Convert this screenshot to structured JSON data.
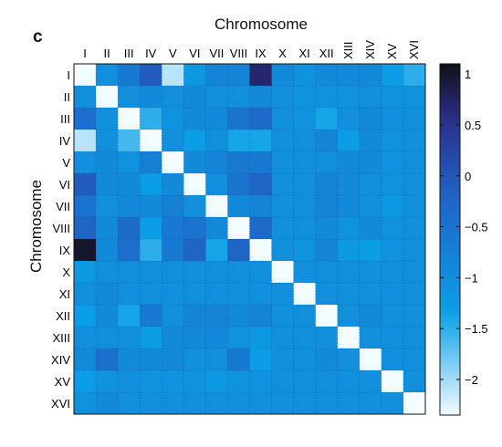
{
  "panel_letter": "c",
  "chart_data": {
    "type": "heatmap",
    "xlabel": "Chromosome",
    "ylabel": "Chromosome",
    "categories": [
      "I",
      "II",
      "III",
      "IV",
      "V",
      "VI",
      "VII",
      "VIII",
      "IX",
      "X",
      "XI",
      "XII",
      "XIII",
      "XIV",
      "XV",
      "XVI"
    ],
    "colorbar": {
      "min": -2.35,
      "max": 1.1,
      "ticks": [
        1,
        0.5,
        0,
        -0.5,
        -1,
        -1.5,
        -2
      ],
      "tick_labels": [
        "1",
        "0.5",
        "0",
        "−0.5",
        "−1",
        "−1.5",
        "−2"
      ]
    },
    "grid": "dotted",
    "colors": {
      "low": "#f2fbff",
      "mid": "#0aa0e6",
      "mid_dark": "#1f67c8",
      "high_blue": "#2b2f8a",
      "max": "#101018"
    },
    "values": [
      [
        -2.35,
        -1.0,
        -0.6,
        -0.1,
        -2.1,
        -1.2,
        -0.8,
        -0.8,
        0.7,
        -0.9,
        -1.1,
        -0.9,
        -0.9,
        -0.9,
        -1.3,
        -1.5
      ],
      [
        -1.0,
        -2.35,
        -1.0,
        -0.9,
        -1.0,
        -0.9,
        -1.0,
        -1.0,
        -0.9,
        -1.0,
        -1.1,
        -1.1,
        -1.1,
        -1.0,
        -1.1,
        -1.1
      ],
      [
        -0.4,
        -1.0,
        -2.35,
        -1.5,
        -1.1,
        -0.9,
        -0.9,
        -0.5,
        -0.3,
        -1.0,
        -1.1,
        -1.4,
        -1.0,
        -0.9,
        -1.0,
        -1.0
      ],
      [
        -2.1,
        -1.0,
        -1.6,
        -2.35,
        -1.0,
        -1.3,
        -1.0,
        -1.4,
        -1.4,
        -1.0,
        -1.0,
        -0.8,
        -1.3,
        -0.9,
        -1.1,
        -1.0
      ],
      [
        -1.0,
        -0.9,
        -1.1,
        -0.7,
        -2.35,
        -0.9,
        -0.8,
        -0.6,
        -0.6,
        -1.0,
        -1.0,
        -1.0,
        -0.9,
        -0.9,
        -1.1,
        -1.0
      ],
      [
        -0.1,
        -0.9,
        -0.9,
        -1.3,
        -0.9,
        -2.35,
        -1.0,
        -0.5,
        -0.2,
        -1.0,
        -1.0,
        -0.8,
        -0.9,
        -1.0,
        -1.1,
        -1.0
      ],
      [
        -0.5,
        -1.0,
        -0.9,
        -0.9,
        -0.7,
        -1.0,
        -2.35,
        -0.9,
        -0.8,
        -1.0,
        -1.0,
        -0.8,
        -0.9,
        -1.0,
        -1.2,
        -1.0
      ],
      [
        -0.2,
        -0.9,
        -0.3,
        -1.3,
        -0.6,
        -0.5,
        -0.9,
        -2.35,
        -0.3,
        -1.0,
        -1.0,
        -0.9,
        -1.1,
        -0.9,
        -1.1,
        -1.0
      ],
      [
        1.0,
        -0.9,
        -0.4,
        -1.5,
        -0.6,
        -0.2,
        -1.4,
        -0.2,
        -2.35,
        -1.0,
        -1.1,
        -0.8,
        -1.2,
        -1.3,
        -1.1,
        -1.0
      ],
      [
        -1.2,
        -1.0,
        -1.0,
        -1.0,
        -1.0,
        -1.0,
        -1.0,
        -1.0,
        -1.0,
        -2.35,
        -1.0,
        -1.0,
        -1.0,
        -1.0,
        -1.0,
        -1.0
      ],
      [
        -1.0,
        -0.9,
        -1.0,
        -1.0,
        -1.0,
        -1.0,
        -1.0,
        -1.0,
        -1.0,
        -1.0,
        -2.35,
        -1.0,
        -1.0,
        -1.0,
        -1.0,
        -1.0
      ],
      [
        -1.3,
        -0.9,
        -1.4,
        -0.6,
        -1.0,
        -0.8,
        -0.8,
        -0.9,
        -0.8,
        -1.0,
        -1.0,
        -2.35,
        -1.0,
        -0.9,
        -1.0,
        -1.0
      ],
      [
        -1.0,
        -1.0,
        -1.0,
        -1.3,
        -0.9,
        -0.9,
        -0.9,
        -1.1,
        -1.2,
        -1.0,
        -1.0,
        -1.0,
        -2.35,
        -1.0,
        -1.0,
        -1.0
      ],
      [
        -0.9,
        -0.4,
        -0.9,
        -0.9,
        -0.9,
        -1.0,
        -1.0,
        -0.6,
        -1.3,
        -1.0,
        -1.0,
        -0.9,
        -1.0,
        -2.35,
        -1.0,
        -1.0
      ],
      [
        -1.3,
        -1.1,
        -1.0,
        -1.1,
        -1.1,
        -1.1,
        -1.2,
        -1.1,
        -1.1,
        -1.0,
        -1.0,
        -1.0,
        -1.0,
        -1.0,
        -2.35,
        -1.0
      ],
      [
        -1.1,
        -0.9,
        -1.0,
        -1.0,
        -1.0,
        -1.0,
        -1.0,
        -1.0,
        -1.0,
        -1.0,
        -1.0,
        -1.0,
        -1.0,
        -1.0,
        -1.0,
        -2.35
      ]
    ]
  }
}
